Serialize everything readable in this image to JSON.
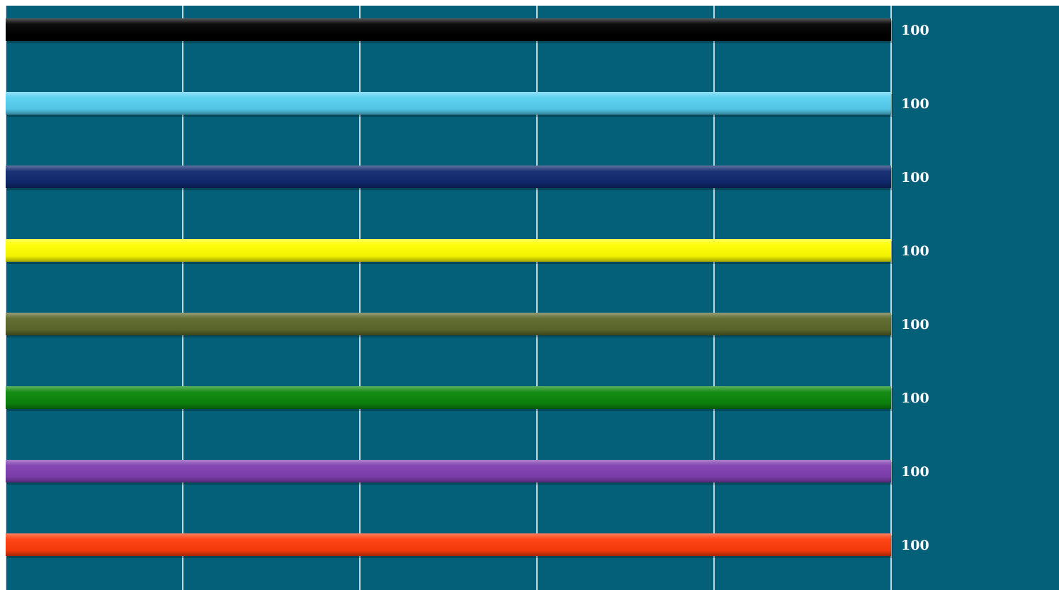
{
  "chart_data": {
    "type": "bar",
    "orientation": "horizontal",
    "categories": [
      null,
      null,
      null,
      null,
      null,
      null,
      null,
      null
    ],
    "values": [
      100,
      100,
      100,
      100,
      100,
      100,
      100,
      100
    ],
    "colors": [
      "#000000",
      "#56cff0",
      "#10296e",
      "#ffff00",
      "#5d682b",
      "#0b870b",
      "#7f3fb0",
      "#ff3c0b"
    ],
    "xlim": [
      0,
      100
    ],
    "xticks": [
      0,
      20,
      40,
      60,
      80,
      100
    ],
    "grid": true
  }
}
